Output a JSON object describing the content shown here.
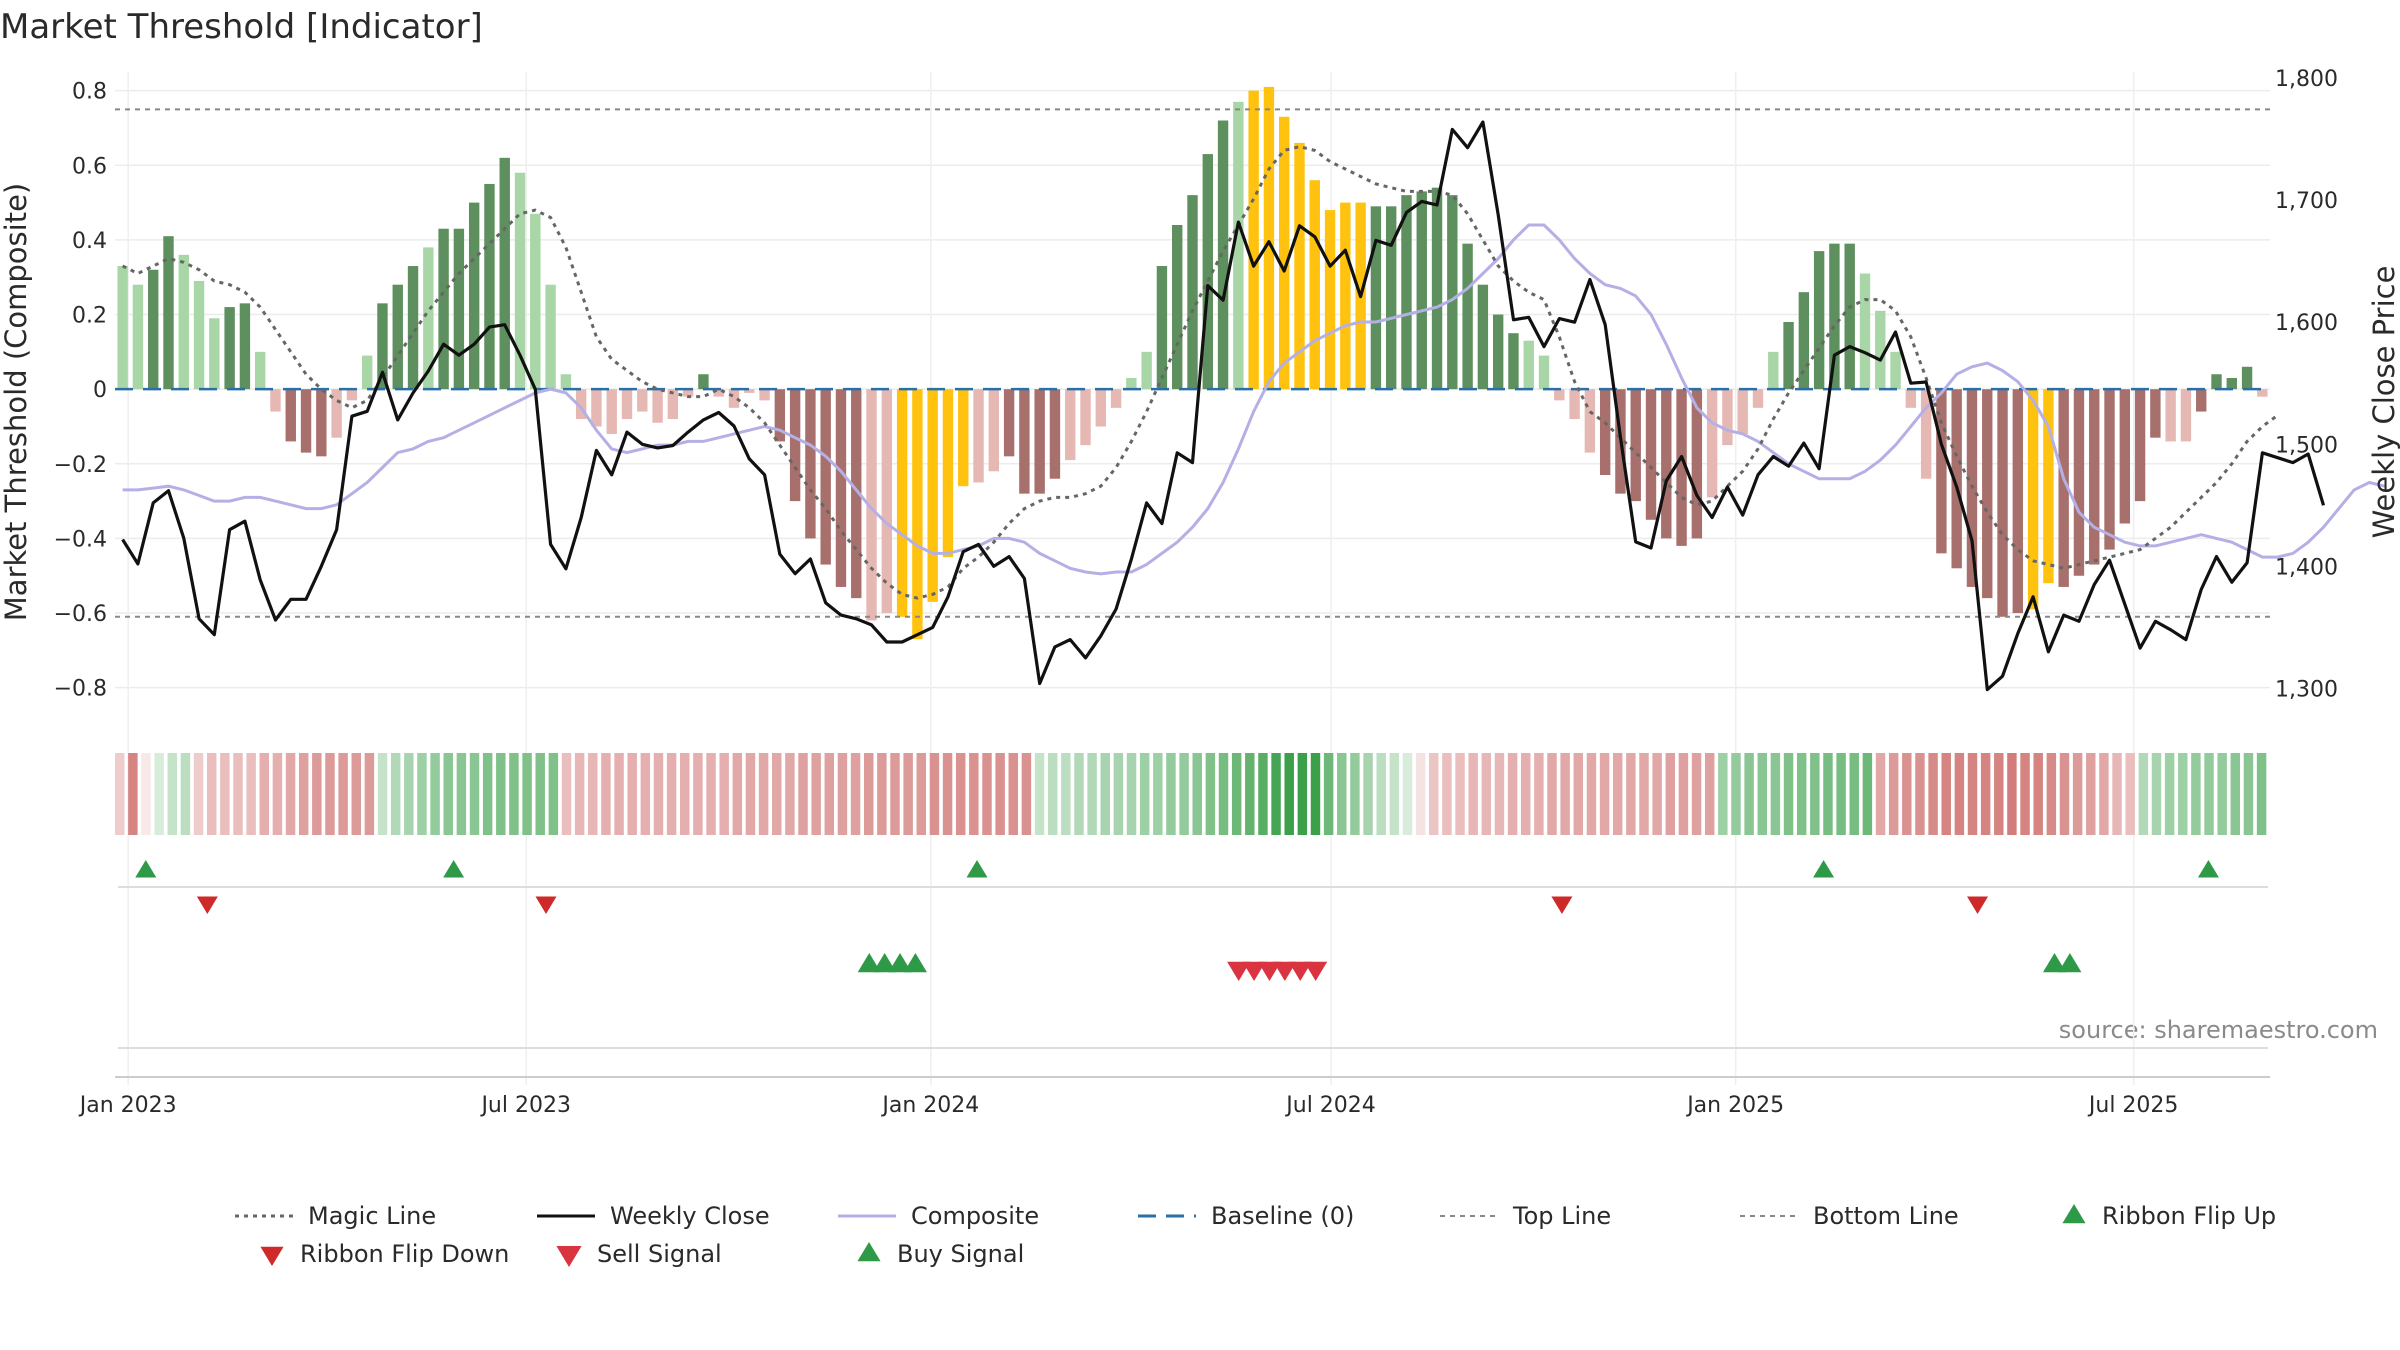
{
  "title": "Market Threshold [Indicator]",
  "source": "source: sharemaestro.com",
  "colors": {
    "hist_dark_green": "#5e8f5e",
    "hist_light_green": "#a9d6a6",
    "hist_dark_red": "#a8706c",
    "hist_light_red": "#e6b8b3",
    "hist_gold": "#ffc20e",
    "weekly_close": "#111111",
    "composite": "#b4b0e6",
    "magic_line": "#666666",
    "baseline": "#2a6fa8",
    "threshold_lines": "#888888",
    "buy": "#2e9a48",
    "sell": "#d9343f",
    "flip_down": "#cf2a2a"
  },
  "chart_data": {
    "type": "line",
    "x_start": "2022-12-26",
    "x_end": "2025-09-01",
    "xticks": [
      {
        "label": "Jan 2023",
        "date": "2023-01-01"
      },
      {
        "label": "Jul 2023",
        "date": "2023-07-01"
      },
      {
        "label": "Jan 2024",
        "date": "2024-01-01"
      },
      {
        "label": "Jul 2024",
        "date": "2024-07-01"
      },
      {
        "label": "Jan 2025",
        "date": "2025-01-01"
      },
      {
        "label": "Jul 2025",
        "date": "2025-07-01"
      }
    ],
    "y_left": {
      "label": "Market Threshold (Composite)",
      "range": [
        -0.9,
        0.85
      ],
      "ticks": [
        0.8,
        0.6,
        0.4,
        0.2,
        0,
        -0.2,
        -0.4,
        -0.6,
        -0.8
      ],
      "tick_labels": [
        "0.8",
        "0.6",
        "0.4",
        "0.2",
        "0",
        "−0.2",
        "−0.4",
        "−0.6",
        "−0.8"
      ]
    },
    "y_right": {
      "label": "Weekly Close Price",
      "range": [
        1270,
        1805
      ],
      "ticks": [
        1800,
        1700,
        1600,
        1500,
        1400,
        1300
      ],
      "tick_labels": [
        "1,800",
        "1,700",
        "1,600",
        "1,500",
        "1,400",
        "1,300"
      ]
    },
    "top_line": 0.75,
    "bottom_line": -0.61,
    "baseline": 0,
    "histogram": [
      0.33,
      0.28,
      0.32,
      0.41,
      0.36,
      0.29,
      0.19,
      0.22,
      0.23,
      0.1,
      -0.06,
      -0.14,
      -0.17,
      -0.18,
      -0.13,
      -0.03,
      0.09,
      0.23,
      0.28,
      0.33,
      0.38,
      0.43,
      0.43,
      0.5,
      0.55,
      0.62,
      0.58,
      0.47,
      0.28,
      0.04,
      -0.08,
      -0.1,
      -0.12,
      -0.08,
      -0.06,
      -0.09,
      -0.08,
      -0.02,
      0.04,
      -0.02,
      -0.05,
      -0.01,
      -0.03,
      -0.14,
      -0.3,
      -0.4,
      -0.47,
      -0.53,
      -0.56,
      -0.62,
      -0.6,
      -0.61,
      -0.67,
      -0.57,
      -0.45,
      -0.26,
      -0.25,
      -0.22,
      -0.18,
      -0.28,
      -0.28,
      -0.24,
      -0.19,
      -0.15,
      -0.1,
      -0.05,
      0.03,
      0.1,
      0.33,
      0.44,
      0.52,
      0.63,
      0.72,
      0.77,
      0.8,
      0.81,
      0.73,
      0.66,
      0.56,
      0.48,
      0.5,
      0.5,
      0.49,
      0.49,
      0.52,
      0.53,
      0.54,
      0.52,
      0.39,
      0.28,
      0.2,
      0.15,
      0.13,
      0.09,
      -0.03,
      -0.08,
      -0.17,
      -0.23,
      -0.28,
      -0.3,
      -0.35,
      -0.4,
      -0.42,
      -0.4,
      -0.29,
      -0.15,
      -0.12,
      -0.05,
      0.1,
      0.18,
      0.26,
      0.37,
      0.39,
      0.39,
      0.31,
      0.21,
      0.1,
      -0.05,
      -0.24,
      -0.44,
      -0.48,
      -0.53,
      -0.56,
      -0.61,
      -0.6,
      -0.59,
      -0.52,
      -0.53,
      -0.5,
      -0.47,
      -0.43,
      -0.36,
      -0.3,
      -0.13,
      -0.14,
      -0.14,
      -0.06,
      0.04,
      0.03,
      0.06,
      -0.02
    ],
    "gold_weeks": [
      51,
      52,
      53,
      54,
      55,
      74,
      75,
      76,
      77,
      78,
      79,
      80,
      81,
      125,
      126
    ],
    "dark_weeks": [
      2,
      3,
      7,
      8,
      11,
      12,
      13,
      17,
      18,
      19,
      21,
      22,
      23,
      24,
      25,
      38,
      43,
      44,
      45,
      46,
      47,
      48,
      58,
      59,
      60,
      61,
      68,
      69,
      70,
      71,
      72,
      82,
      83,
      84,
      85,
      86,
      87,
      88,
      89,
      90,
      91,
      97,
      98,
      99,
      100,
      101,
      102,
      103,
      109,
      110,
      111,
      112,
      113,
      119,
      120,
      121,
      122,
      123,
      124,
      127,
      128,
      129,
      130,
      131,
      132,
      133,
      136,
      137,
      138,
      139,
      143
    ],
    "weekly_close": [
      1422,
      1402,
      1452,
      1462,
      1423,
      1357,
      1344,
      1430,
      1437,
      1389,
      1356,
      1373,
      1373,
      1400,
      1430,
      1523,
      1527,
      1559,
      1520,
      1542,
      1560,
      1582,
      1573,
      1582,
      1596,
      1598,
      1573,
      1545,
      1418,
      1398,
      1440,
      1495,
      1475,
      1510,
      1500,
      1497,
      1499,
      1510,
      1520,
      1526,
      1515,
      1488,
      1475,
      1410,
      1394,
      1406,
      1370,
      1360,
      1357,
      1352,
      1338,
      1338,
      1344,
      1350,
      1375,
      1412,
      1418,
      1400,
      1408,
      1390,
      1304,
      1334,
      1340,
      1325,
      1343,
      1365,
      1406,
      1452,
      1435,
      1493,
      1485,
      1630,
      1618,
      1682,
      1646,
      1666,
      1642,
      1679,
      1670,
      1646,
      1659,
      1621,
      1667,
      1663,
      1690,
      1699,
      1696,
      1758,
      1743,
      1764,
      1688,
      1602,
      1604,
      1580,
      1603,
      1600,
      1635,
      1598,
      1506,
      1420,
      1415,
      1470,
      1490,
      1458,
      1440,
      1465,
      1442,
      1475,
      1490,
      1482,
      1501,
      1480,
      1573,
      1580,
      1575,
      1569,
      1592,
      1550,
      1551,
      1500,
      1465,
      1421,
      1299,
      1310,
      1345,
      1375,
      1330,
      1360,
      1355,
      1385,
      1405,
      1369,
      1333,
      1355,
      1348,
      1340,
      1381,
      1408,
      1387,
      1403,
      1493,
      1489,
      1485,
      1492,
      1450
    ],
    "composite": [
      -0.27,
      -0.27,
      -0.265,
      -0.26,
      -0.27,
      -0.285,
      -0.3,
      -0.3,
      -0.29,
      -0.29,
      -0.3,
      -0.31,
      -0.32,
      -0.32,
      -0.31,
      -0.28,
      -0.25,
      -0.21,
      -0.17,
      -0.16,
      -0.14,
      -0.13,
      -0.11,
      -0.09,
      -0.07,
      -0.05,
      -0.03,
      -0.01,
      0.0,
      -0.01,
      -0.05,
      -0.11,
      -0.16,
      -0.17,
      -0.16,
      -0.15,
      -0.15,
      -0.14,
      -0.14,
      -0.13,
      -0.12,
      -0.11,
      -0.1,
      -0.11,
      -0.13,
      -0.15,
      -0.18,
      -0.22,
      -0.27,
      -0.32,
      -0.36,
      -0.39,
      -0.42,
      -0.44,
      -0.44,
      -0.43,
      -0.42,
      -0.4,
      -0.4,
      -0.41,
      -0.44,
      -0.46,
      -0.48,
      -0.49,
      -0.495,
      -0.49,
      -0.49,
      -0.47,
      -0.44,
      -0.41,
      -0.37,
      -0.32,
      -0.25,
      -0.16,
      -0.06,
      0.02,
      0.07,
      0.1,
      0.13,
      0.15,
      0.17,
      0.18,
      0.18,
      0.19,
      0.2,
      0.21,
      0.22,
      0.24,
      0.27,
      0.31,
      0.35,
      0.4,
      0.44,
      0.44,
      0.4,
      0.35,
      0.31,
      0.28,
      0.27,
      0.25,
      0.2,
      0.12,
      0.03,
      -0.05,
      -0.09,
      -0.11,
      -0.12,
      -0.14,
      -0.17,
      -0.2,
      -0.22,
      -0.24,
      -0.24,
      -0.24,
      -0.22,
      -0.19,
      -0.15,
      -0.1,
      -0.05,
      -0.01,
      0.04,
      0.06,
      0.07,
      0.05,
      0.02,
      -0.03,
      -0.1,
      -0.24,
      -0.33,
      -0.37,
      -0.39,
      -0.41,
      -0.42,
      -0.42,
      -0.41,
      -0.4,
      -0.39,
      -0.4,
      -0.41,
      -0.43,
      -0.45,
      -0.45,
      -0.44,
      -0.41,
      -0.37,
      -0.32,
      -0.27,
      -0.25,
      -0.26
    ],
    "magic_line": [
      0.33,
      0.31,
      0.33,
      0.35,
      0.34,
      0.32,
      0.29,
      0.28,
      0.26,
      0.22,
      0.16,
      0.1,
      0.04,
      0.0,
      -0.03,
      -0.05,
      -0.03,
      0.03,
      0.09,
      0.15,
      0.21,
      0.26,
      0.31,
      0.35,
      0.39,
      0.43,
      0.47,
      0.48,
      0.46,
      0.38,
      0.26,
      0.14,
      0.08,
      0.05,
      0.02,
      0.0,
      -0.01,
      -0.02,
      -0.02,
      0.0,
      -0.02,
      -0.05,
      -0.09,
      -0.15,
      -0.21,
      -0.27,
      -0.32,
      -0.38,
      -0.43,
      -0.48,
      -0.52,
      -0.55,
      -0.56,
      -0.55,
      -0.53,
      -0.48,
      -0.45,
      -0.41,
      -0.36,
      -0.32,
      -0.3,
      -0.29,
      -0.29,
      -0.28,
      -0.26,
      -0.21,
      -0.14,
      -0.06,
      0.03,
      0.12,
      0.21,
      0.29,
      0.37,
      0.44,
      0.51,
      0.59,
      0.64,
      0.65,
      0.64,
      0.61,
      0.59,
      0.57,
      0.55,
      0.54,
      0.53,
      0.53,
      0.53,
      0.52,
      0.47,
      0.4,
      0.33,
      0.29,
      0.26,
      0.24,
      0.14,
      0.02,
      -0.06,
      -0.09,
      -0.13,
      -0.17,
      -0.21,
      -0.25,
      -0.29,
      -0.31,
      -0.3,
      -0.26,
      -0.22,
      -0.16,
      -0.08,
      -0.01,
      0.05,
      0.11,
      0.17,
      0.22,
      0.24,
      0.24,
      0.21,
      0.14,
      0.03,
      -0.09,
      -0.18,
      -0.26,
      -0.33,
      -0.39,
      -0.43,
      -0.46,
      -0.47,
      -0.48,
      -0.47,
      -0.46,
      -0.45,
      -0.44,
      -0.43,
      -0.4,
      -0.37,
      -0.33,
      -0.29,
      -0.25,
      -0.2,
      -0.14,
      -0.1,
      -0.07
    ],
    "ribbon": [
      -0.35,
      -0.85,
      -0.15,
      0.2,
      0.3,
      0.35,
      -0.35,
      -0.45,
      -0.45,
      -0.45,
      -0.45,
      -0.55,
      -0.55,
      -0.6,
      -0.65,
      -0.7,
      -0.7,
      -0.7,
      -0.7,
      -0.7,
      0.3,
      0.4,
      0.45,
      0.5,
      0.55,
      0.6,
      0.6,
      0.6,
      0.65,
      0.65,
      0.65,
      0.65,
      0.65,
      0.65,
      -0.45,
      -0.5,
      -0.5,
      -0.55,
      -0.55,
      -0.55,
      -0.55,
      -0.55,
      -0.55,
      -0.55,
      -0.55,
      -0.55,
      -0.55,
      -0.6,
      -0.6,
      -0.6,
      -0.6,
      -0.6,
      -0.65,
      -0.65,
      -0.65,
      -0.65,
      -0.65,
      -0.7,
      -0.7,
      -0.7,
      -0.7,
      -0.7,
      -0.75,
      -0.75,
      -0.75,
      -0.75,
      -0.75,
      -0.75,
      -0.75,
      -0.75,
      0.3,
      0.35,
      0.35,
      0.4,
      0.4,
      0.45,
      0.45,
      0.45,
      0.5,
      0.5,
      0.55,
      0.55,
      0.6,
      0.65,
      0.7,
      0.75,
      0.8,
      0.85,
      0.95,
      1.0,
      1.0,
      1.0,
      0.75,
      0.6,
      0.55,
      0.45,
      0.35,
      0.3,
      0.2,
      -0.2,
      -0.4,
      -0.45,
      -0.45,
      -0.5,
      -0.5,
      -0.5,
      -0.55,
      -0.55,
      -0.55,
      -0.6,
      -0.6,
      -0.6,
      -0.6,
      -0.6,
      -0.6,
      -0.6,
      -0.6,
      -0.6,
      -0.65,
      -0.65,
      -0.65,
      -0.65,
      0.5,
      0.55,
      0.6,
      0.6,
      0.6,
      0.65,
      0.65,
      0.65,
      0.7,
      0.7,
      0.7,
      0.75,
      -0.6,
      -0.7,
      -0.75,
      -0.75,
      -0.8,
      -0.85,
      -0.85,
      -0.85,
      -0.85,
      -0.85,
      -0.9,
      -0.85,
      -0.85,
      -0.8,
      -0.75,
      -0.7,
      -0.65,
      -0.6,
      -0.5,
      -0.45,
      0.4,
      0.45,
      0.5,
      0.5,
      0.55,
      0.55,
      0.55,
      0.6,
      0.6,
      0.65
    ],
    "ribbon_flip_up": [
      "2023-01-09",
      "2023-05-29",
      "2024-01-22",
      "2025-02-10",
      "2025-08-04"
    ],
    "ribbon_flip_down": [
      "2023-02-06",
      "2023-07-10",
      "2024-10-14",
      "2025-04-21"
    ],
    "buy_signals": [
      "2023-12-04",
      "2023-12-11",
      "2023-12-18",
      "2023-12-25",
      "2025-05-26",
      "2025-06-02"
    ],
    "sell_signals": [
      "2024-05-20",
      "2024-05-27",
      "2024-06-03",
      "2024-06-10",
      "2024-06-17",
      "2024-06-24"
    ],
    "legend": [
      {
        "label": "Magic Line",
        "style": "dotted-dark"
      },
      {
        "label": "Weekly Close",
        "style": "solid-black"
      },
      {
        "label": "Composite",
        "style": "solid-lavender"
      },
      {
        "label": "Baseline (0)",
        "style": "dashed-blue"
      },
      {
        "label": "Top Line",
        "style": "dotted-gray"
      },
      {
        "label": "Bottom Line",
        "style": "dotted-gray"
      },
      {
        "label": "Ribbon Flip Up",
        "style": "triangle-up-green"
      },
      {
        "label": "Ribbon Flip Down",
        "style": "triangle-down-red"
      },
      {
        "label": "Sell Signal",
        "style": "triangle-down-pink"
      },
      {
        "label": "Buy Signal",
        "style": "triangle-up-green"
      }
    ]
  }
}
